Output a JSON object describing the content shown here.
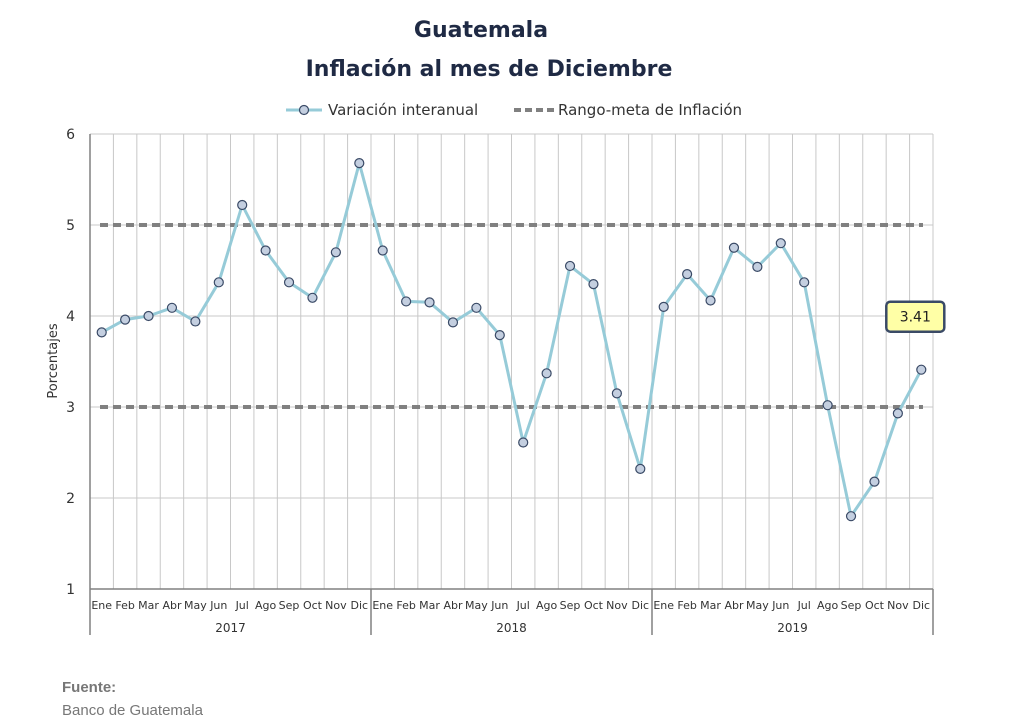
{
  "colors": {
    "series_line": "#96cbd8",
    "marker_fill": "#c4cfe0",
    "marker_stroke": "#3a4a66",
    "target_line": "#808080",
    "grid": "#c8c8c8",
    "axis": "#808080",
    "title": "#1f2a44",
    "annotation_fill": "#ffffa6",
    "annotation_stroke": "#3a4a66"
  },
  "footer": {
    "source_label": "Fuente:",
    "source_text": "Banco de Guatemala"
  },
  "chart_data": {
    "type": "line",
    "title": "Guatemala",
    "subtitle": "Inflación al mes de Diciembre",
    "ylabel": "Porcentajes",
    "xlabel": "",
    "ylim": [
      1,
      6
    ],
    "yticks": [
      1,
      2,
      3,
      4,
      5,
      6
    ],
    "grid": true,
    "legend_position": "top",
    "categories": [
      "Ene",
      "Feb",
      "Mar",
      "Abr",
      "May",
      "Jun",
      "Jul",
      "Ago",
      "Sep",
      "Oct",
      "Nov",
      "Dic",
      "Ene",
      "Feb",
      "Mar",
      "Abr",
      "May",
      "Jun",
      "Jul",
      "Ago",
      "Sep",
      "Oct",
      "Nov",
      "Dic",
      "Ene",
      "Feb",
      "Mar",
      "Abr",
      "May",
      "Jun",
      "Jul",
      "Ago",
      "Sep",
      "Oct",
      "Nov",
      "Dic"
    ],
    "groups": [
      {
        "label": "2017",
        "count": 12
      },
      {
        "label": "2018",
        "count": 12
      },
      {
        "label": "2019",
        "count": 12
      }
    ],
    "series": [
      {
        "name": "Variación interanual",
        "style": "line-with-markers",
        "values": [
          3.82,
          3.96,
          4.0,
          4.09,
          3.94,
          4.37,
          5.22,
          4.72,
          4.37,
          4.2,
          4.7,
          5.68,
          4.72,
          4.16,
          4.15,
          3.93,
          4.09,
          3.79,
          2.61,
          3.37,
          4.55,
          4.35,
          3.15,
          2.32,
          4.1,
          4.46,
          4.17,
          4.75,
          4.54,
          4.8,
          4.37,
          3.02,
          1.8,
          2.18,
          2.93,
          3.41
        ]
      },
      {
        "name": "Rango-meta de Inflación",
        "style": "dashed",
        "lines": [
          5,
          3
        ]
      }
    ],
    "annotations": [
      {
        "text": "3.41",
        "category_index": 35,
        "value": 3.41
      }
    ]
  }
}
